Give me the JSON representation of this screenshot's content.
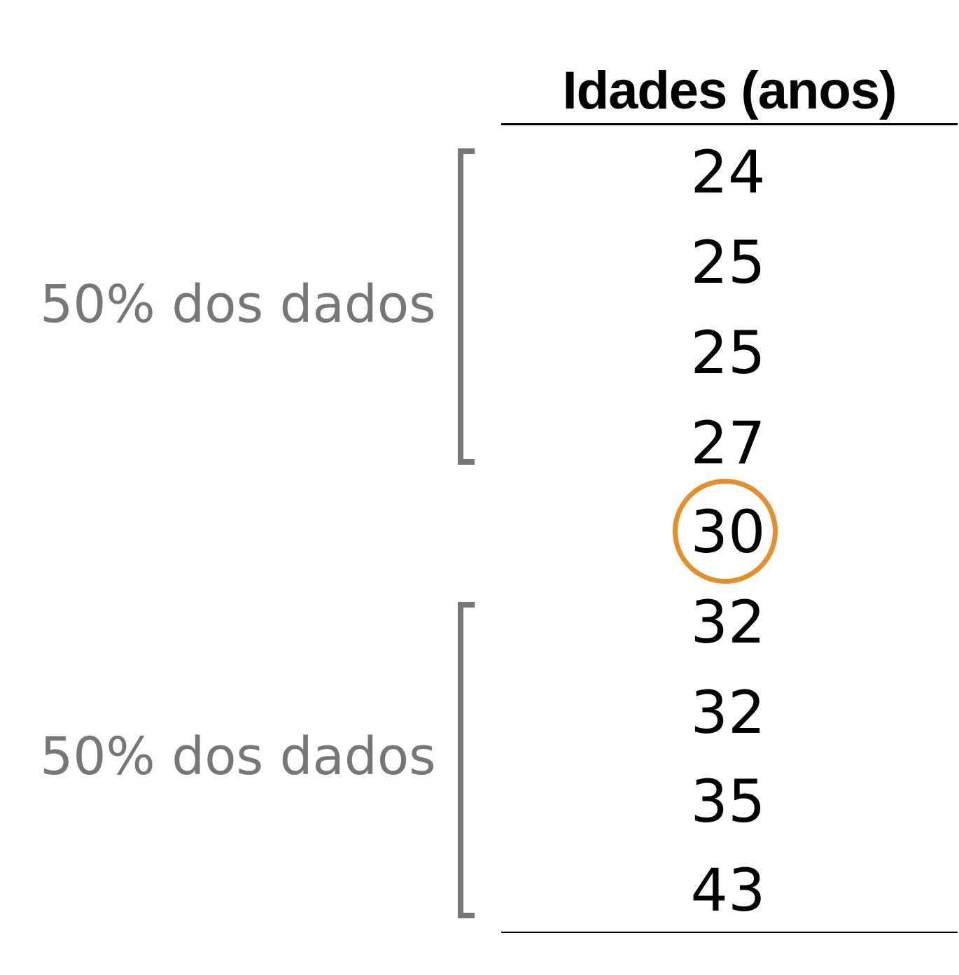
{
  "header": {
    "title": "Idades (anos)"
  },
  "values": [
    "24",
    "25",
    "25",
    "27",
    "30",
    "32",
    "32",
    "35",
    "43"
  ],
  "median": {
    "value": "30",
    "ring_color": "#e28f2c"
  },
  "groups": {
    "upper": {
      "label": "50% dos dados"
    },
    "lower": {
      "label": "50% dos dados"
    }
  },
  "colors": {
    "label": "#777777",
    "bracket": "#777777",
    "text": "#000000"
  }
}
